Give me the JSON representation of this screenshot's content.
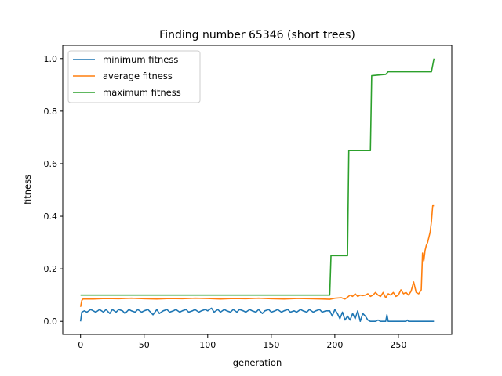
{
  "chart_data": {
    "type": "line",
    "title": "Finding number 65346 (short trees)",
    "xlabel": "generation",
    "ylabel": "fitness",
    "xlim": [
      -14,
      292
    ],
    "ylim": [
      -0.05,
      1.05
    ],
    "xticks": [
      0,
      50,
      100,
      150,
      200,
      250
    ],
    "yticks": [
      0.0,
      0.2,
      0.4,
      0.6,
      0.8,
      1.0
    ],
    "xtick_labels": [
      "0",
      "50",
      "100",
      "150",
      "200",
      "250"
    ],
    "ytick_labels": [
      "0.0",
      "0.2",
      "0.4",
      "0.6",
      "0.8",
      "1.0"
    ],
    "grid": false,
    "legend_position": "top-left",
    "series": [
      {
        "name": "minimum fitness",
        "color": "#1f77b4",
        "points": [
          [
            0,
            0.0
          ],
          [
            1,
            0.035
          ],
          [
            3,
            0.04
          ],
          [
            5,
            0.035
          ],
          [
            8,
            0.045
          ],
          [
            10,
            0.04
          ],
          [
            12,
            0.035
          ],
          [
            15,
            0.045
          ],
          [
            18,
            0.035
          ],
          [
            20,
            0.045
          ],
          [
            23,
            0.03
          ],
          [
            25,
            0.045
          ],
          [
            28,
            0.035
          ],
          [
            30,
            0.045
          ],
          [
            33,
            0.04
          ],
          [
            35,
            0.03
          ],
          [
            38,
            0.045
          ],
          [
            40,
            0.04
          ],
          [
            43,
            0.035
          ],
          [
            45,
            0.045
          ],
          [
            48,
            0.035
          ],
          [
            50,
            0.04
          ],
          [
            53,
            0.045
          ],
          [
            55,
            0.035
          ],
          [
            57,
            0.025
          ],
          [
            60,
            0.045
          ],
          [
            62,
            0.03
          ],
          [
            65,
            0.04
          ],
          [
            68,
            0.045
          ],
          [
            70,
            0.035
          ],
          [
            73,
            0.04
          ],
          [
            75,
            0.045
          ],
          [
            78,
            0.035
          ],
          [
            80,
            0.04
          ],
          [
            83,
            0.045
          ],
          [
            85,
            0.035
          ],
          [
            88,
            0.04
          ],
          [
            90,
            0.045
          ],
          [
            93,
            0.035
          ],
          [
            95,
            0.04
          ],
          [
            98,
            0.045
          ],
          [
            100,
            0.04
          ],
          [
            103,
            0.05
          ],
          [
            105,
            0.035
          ],
          [
            108,
            0.045
          ],
          [
            110,
            0.035
          ],
          [
            113,
            0.045
          ],
          [
            115,
            0.04
          ],
          [
            118,
            0.035
          ],
          [
            120,
            0.045
          ],
          [
            123,
            0.035
          ],
          [
            125,
            0.045
          ],
          [
            128,
            0.04
          ],
          [
            130,
            0.035
          ],
          [
            133,
            0.045
          ],
          [
            135,
            0.04
          ],
          [
            138,
            0.035
          ],
          [
            140,
            0.045
          ],
          [
            143,
            0.03
          ],
          [
            145,
            0.04
          ],
          [
            148,
            0.045
          ],
          [
            150,
            0.035
          ],
          [
            153,
            0.04
          ],
          [
            155,
            0.045
          ],
          [
            158,
            0.035
          ],
          [
            160,
            0.04
          ],
          [
            163,
            0.045
          ],
          [
            165,
            0.035
          ],
          [
            168,
            0.04
          ],
          [
            170,
            0.035
          ],
          [
            173,
            0.045
          ],
          [
            175,
            0.04
          ],
          [
            178,
            0.035
          ],
          [
            180,
            0.045
          ],
          [
            183,
            0.035
          ],
          [
            185,
            0.04
          ],
          [
            188,
            0.045
          ],
          [
            190,
            0.035
          ],
          [
            193,
            0.04
          ],
          [
            196,
            0.04
          ],
          [
            198,
            0.02
          ],
          [
            200,
            0.045
          ],
          [
            202,
            0.03
          ],
          [
            204,
            0.01
          ],
          [
            206,
            0.035
          ],
          [
            208,
            0.005
          ],
          [
            210,
            0.02
          ],
          [
            212,
            0.005
          ],
          [
            214,
            0.03
          ],
          [
            216,
            0.01
          ],
          [
            218,
            0.04
          ],
          [
            220,
            0.0
          ],
          [
            222,
            0.03
          ],
          [
            224,
            0.02
          ],
          [
            226,
            0.005
          ],
          [
            228,
            0.0
          ],
          [
            232,
            0.0
          ],
          [
            234,
            0.005
          ],
          [
            236,
            0.0
          ],
          [
            240,
            0.0
          ],
          [
            241,
            0.025
          ],
          [
            242,
            0.0
          ],
          [
            256,
            0.0
          ],
          [
            257,
            0.005
          ],
          [
            258,
            0.0
          ],
          [
            278,
            0.0
          ]
        ]
      },
      {
        "name": "average fitness",
        "color": "#ff7f0e",
        "points": [
          [
            0,
            0.055
          ],
          [
            1,
            0.08
          ],
          [
            2,
            0.085
          ],
          [
            10,
            0.085
          ],
          [
            20,
            0.087
          ],
          [
            30,
            0.086
          ],
          [
            40,
            0.088
          ],
          [
            50,
            0.086
          ],
          [
            60,
            0.085
          ],
          [
            70,
            0.087
          ],
          [
            80,
            0.086
          ],
          [
            90,
            0.088
          ],
          [
            100,
            0.087
          ],
          [
            110,
            0.085
          ],
          [
            120,
            0.087
          ],
          [
            130,
            0.086
          ],
          [
            140,
            0.088
          ],
          [
            150,
            0.086
          ],
          [
            160,
            0.085
          ],
          [
            170,
            0.087
          ],
          [
            180,
            0.086
          ],
          [
            190,
            0.085
          ],
          [
            196,
            0.084
          ],
          [
            200,
            0.088
          ],
          [
            205,
            0.09
          ],
          [
            208,
            0.085
          ],
          [
            210,
            0.092
          ],
          [
            212,
            0.1
          ],
          [
            214,
            0.095
          ],
          [
            216,
            0.105
          ],
          [
            218,
            0.095
          ],
          [
            220,
            0.1
          ],
          [
            222,
            0.098
          ],
          [
            224,
            0.1
          ],
          [
            226,
            0.105
          ],
          [
            228,
            0.095
          ],
          [
            230,
            0.1
          ],
          [
            232,
            0.11
          ],
          [
            234,
            0.1
          ],
          [
            236,
            0.095
          ],
          [
            238,
            0.11
          ],
          [
            240,
            0.09
          ],
          [
            242,
            0.105
          ],
          [
            244,
            0.1
          ],
          [
            246,
            0.11
          ],
          [
            248,
            0.095
          ],
          [
            250,
            0.1
          ],
          [
            252,
            0.12
          ],
          [
            254,
            0.105
          ],
          [
            256,
            0.11
          ],
          [
            258,
            0.1
          ],
          [
            260,
            0.115
          ],
          [
            262,
            0.15
          ],
          [
            264,
            0.11
          ],
          [
            266,
            0.105
          ],
          [
            268,
            0.12
          ],
          [
            269,
            0.26
          ],
          [
            270,
            0.23
          ],
          [
            271,
            0.27
          ],
          [
            272,
            0.29
          ],
          [
            273,
            0.3
          ],
          [
            274,
            0.32
          ],
          [
            275,
            0.34
          ],
          [
            276,
            0.38
          ],
          [
            277,
            0.44
          ],
          [
            278,
            0.44
          ]
        ]
      },
      {
        "name": "maximum fitness",
        "color": "#2ca02c",
        "points": [
          [
            0,
            0.1
          ],
          [
            196,
            0.1
          ],
          [
            197,
            0.25
          ],
          [
            210,
            0.25
          ],
          [
            211,
            0.65
          ],
          [
            228,
            0.65
          ],
          [
            229,
            0.935
          ],
          [
            240,
            0.94
          ],
          [
            242,
            0.95
          ],
          [
            276,
            0.95
          ],
          [
            278,
            1.0
          ]
        ]
      }
    ]
  }
}
